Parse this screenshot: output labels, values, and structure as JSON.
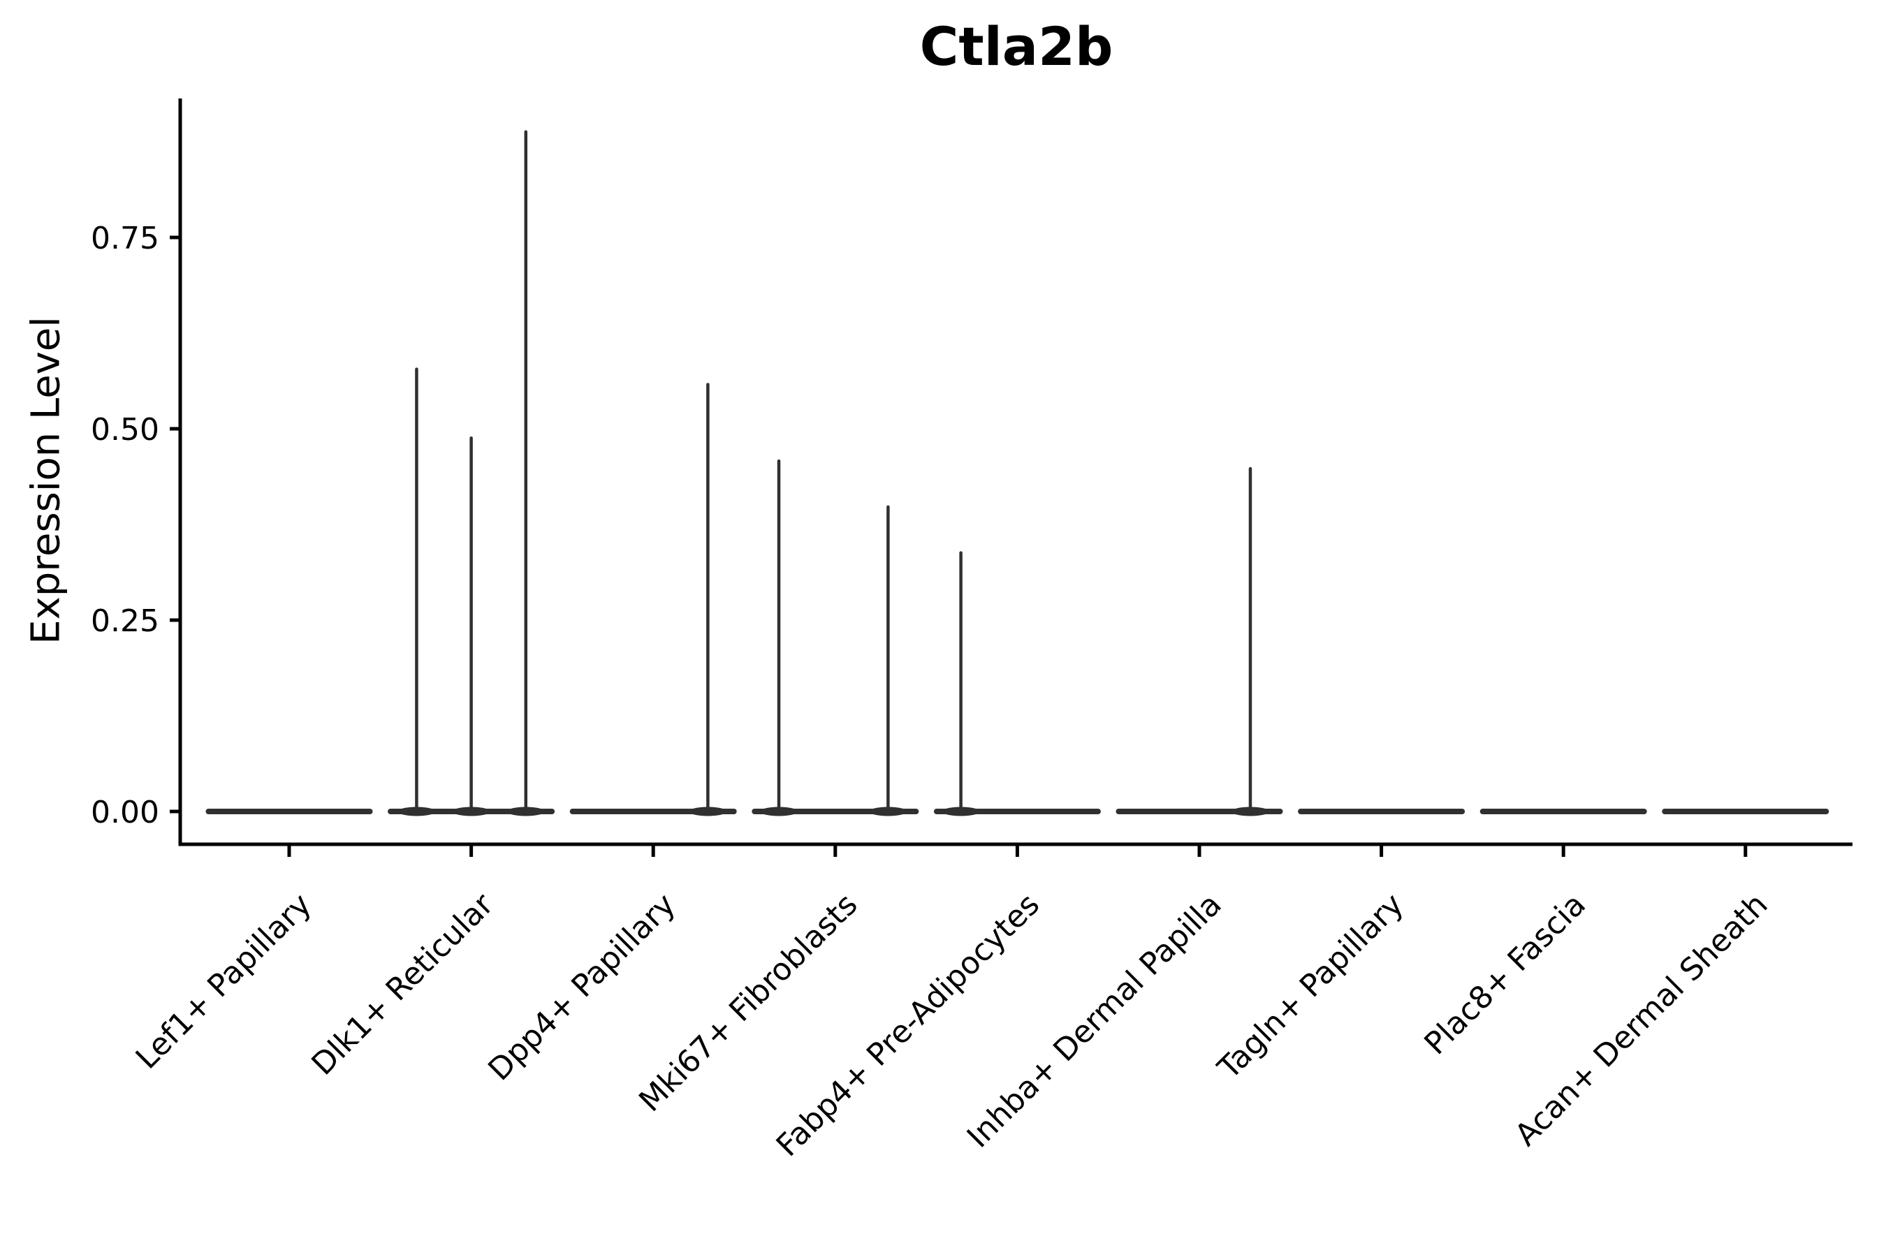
{
  "figure": {
    "title": "Ctla2b",
    "y_axis_title": "Expression Level"
  },
  "chart_data": {
    "type": "violin",
    "title": "Ctla2b",
    "xlabel": "",
    "ylabel": "Expression Level",
    "grid": false,
    "legend_position": "none",
    "ylim": [
      -0.04,
      0.93
    ],
    "ytick_labels": [
      "0.00",
      "0.25",
      "0.50",
      "0.75"
    ],
    "ytick_values": [
      0.0,
      0.25,
      0.5,
      0.75
    ],
    "categories": [
      "Lef1+ Papillary",
      "Dlk1+ Reticular",
      "Dpp4+ Papillary",
      "Mki67+ Fibroblasts",
      "Fabp4+ Pre-Adipocytes",
      "Inhba+ Dermal Papilla",
      "Tagln+ Papillary",
      "Plac8+ Fascia",
      "Acan+ Dermal Sheath"
    ],
    "violins": [
      {
        "category": "Lef1+ Papillary",
        "base_value": 0,
        "spikes": []
      },
      {
        "category": "Dlk1+ Reticular",
        "base_value": 0,
        "spikes": [
          {
            "dx": -0.3,
            "value": 0.58
          },
          {
            "dx": 0.0,
            "value": 0.49
          },
          {
            "dx": 0.3,
            "value": 0.89
          }
        ]
      },
      {
        "category": "Dpp4+ Papillary",
        "base_value": 0,
        "spikes": [
          {
            "dx": 0.3,
            "value": 0.56
          }
        ]
      },
      {
        "category": "Mki67+ Fibroblasts",
        "base_value": 0,
        "spikes": [
          {
            "dx": -0.31,
            "value": 0.46
          },
          {
            "dx": 0.29,
            "value": 0.4
          }
        ]
      },
      {
        "category": "Fabp4+ Pre-Adipocytes",
        "base_value": 0,
        "spikes": [
          {
            "dx": -0.31,
            "value": 0.34
          }
        ]
      },
      {
        "category": "Inhba+ Dermal Papilla",
        "base_value": 0,
        "spikes": [
          {
            "dx": 0.28,
            "value": 0.45
          }
        ]
      },
      {
        "category": "Tagln+ Papillary",
        "base_value": 0,
        "spikes": []
      },
      {
        "category": "Plac8+ Fascia",
        "base_value": 0,
        "spikes": []
      },
      {
        "category": "Acan+ Dermal Sheath",
        "base_value": 0,
        "spikes": []
      }
    ],
    "colors": {
      "violin": "#303030",
      "axis": "#000000",
      "text": "#000000",
      "background": "#ffffff"
    }
  }
}
